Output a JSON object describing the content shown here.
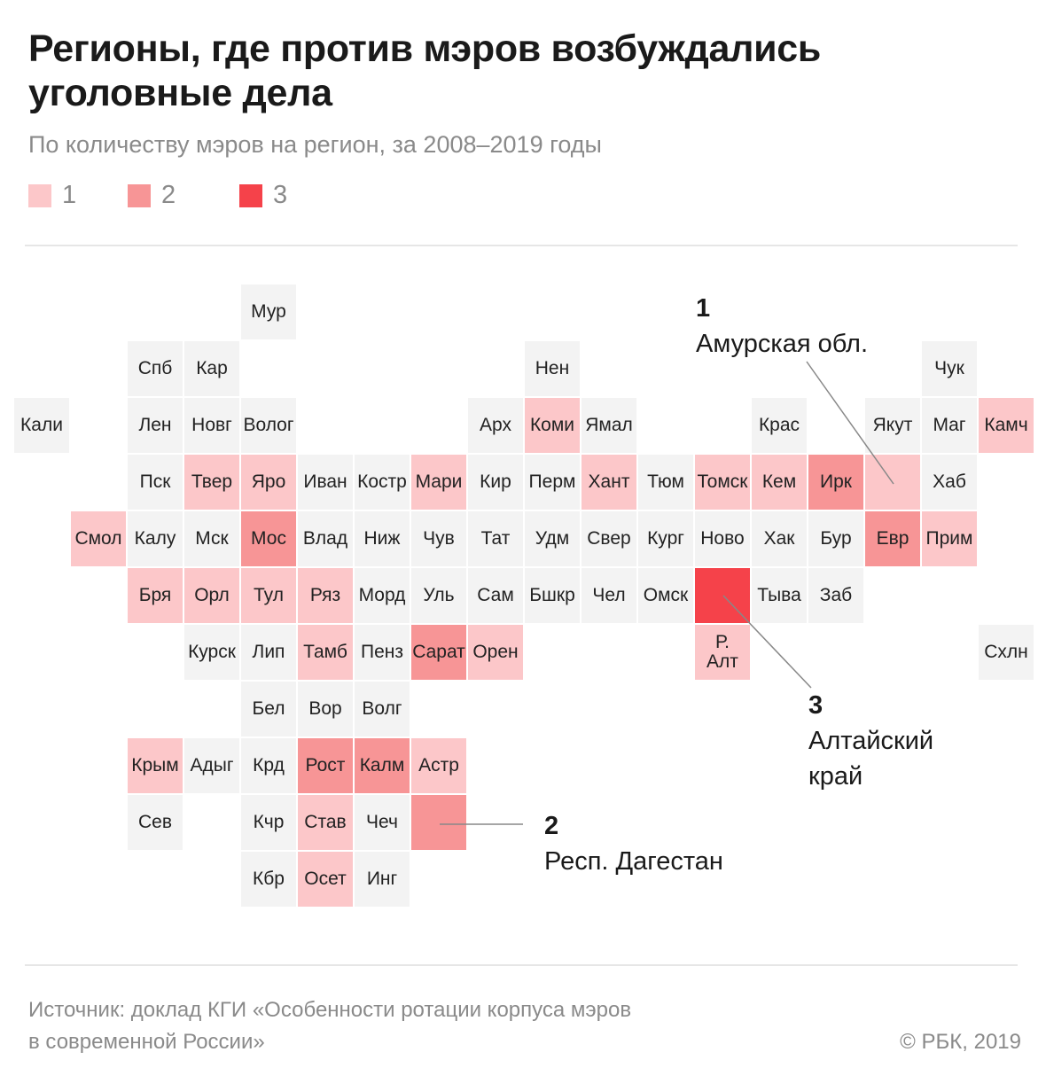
{
  "title": "Регионы, где против мэров возбуждались уголовные дела",
  "subtitle": "По количеству мэров на регион, за 2008–2019 годы",
  "colors": {
    "0": "#f3f3f3",
    "1": "#fcc7c9",
    "2": "#f79596",
    "3": "#f5424a"
  },
  "legend": [
    {
      "label": "1",
      "value": 1
    },
    {
      "label": "2",
      "value": 2
    },
    {
      "label": "3",
      "value": 3
    }
  ],
  "tiles": [
    {
      "label": "Мур",
      "col": 4,
      "row": 0,
      "value": 0
    },
    {
      "label": "Спб",
      "col": 2,
      "row": 1,
      "value": 0
    },
    {
      "label": "Кар",
      "col": 3,
      "row": 1,
      "value": 0
    },
    {
      "label": "Нен",
      "col": 9,
      "row": 1,
      "value": 0
    },
    {
      "label": "Чук",
      "col": 16,
      "row": 1,
      "value": 0
    },
    {
      "label": "Кали",
      "col": 0,
      "row": 2,
      "value": 0
    },
    {
      "label": "Лен",
      "col": 2,
      "row": 2,
      "value": 0
    },
    {
      "label": "Новг",
      "col": 3,
      "row": 2,
      "value": 0
    },
    {
      "label": "Волог",
      "col": 4,
      "row": 2,
      "value": 0
    },
    {
      "label": "Арх",
      "col": 8,
      "row": 2,
      "value": 0
    },
    {
      "label": "Коми",
      "col": 9,
      "row": 2,
      "value": 1
    },
    {
      "label": "Ямал",
      "col": 10,
      "row": 2,
      "value": 0
    },
    {
      "label": "Крас",
      "col": 13,
      "row": 2,
      "value": 0
    },
    {
      "label": "Якут",
      "col": 15,
      "row": 2,
      "value": 0
    },
    {
      "label": "Маг",
      "col": 16,
      "row": 2,
      "value": 0
    },
    {
      "label": "Камч",
      "col": 17,
      "row": 2,
      "value": 1
    },
    {
      "label": "Пск",
      "col": 2,
      "row": 3,
      "value": 0
    },
    {
      "label": "Твер",
      "col": 3,
      "row": 3,
      "value": 1
    },
    {
      "label": "Яро",
      "col": 4,
      "row": 3,
      "value": 1
    },
    {
      "label": "Иван",
      "col": 5,
      "row": 3,
      "value": 0
    },
    {
      "label": "Костр",
      "col": 6,
      "row": 3,
      "value": 0
    },
    {
      "label": "Мари",
      "col": 7,
      "row": 3,
      "value": 1
    },
    {
      "label": "Кир",
      "col": 8,
      "row": 3,
      "value": 0
    },
    {
      "label": "Перм",
      "col": 9,
      "row": 3,
      "value": 0
    },
    {
      "label": "Хант",
      "col": 10,
      "row": 3,
      "value": 1
    },
    {
      "label": "Тюм",
      "col": 11,
      "row": 3,
      "value": 0
    },
    {
      "label": "Томск",
      "col": 12,
      "row": 3,
      "value": 1
    },
    {
      "label": "Кем",
      "col": 13,
      "row": 3,
      "value": 1
    },
    {
      "label": "Ирк",
      "col": 14,
      "row": 3,
      "value": 2
    },
    {
      "label": "",
      "col": 15,
      "row": 3,
      "value": 1,
      "callout": "Амурская обл."
    },
    {
      "label": "Хаб",
      "col": 16,
      "row": 3,
      "value": 0
    },
    {
      "label": "Смол",
      "col": 1,
      "row": 4,
      "value": 1
    },
    {
      "label": "Калу",
      "col": 2,
      "row": 4,
      "value": 0
    },
    {
      "label": "Мск",
      "col": 3,
      "row": 4,
      "value": 0
    },
    {
      "label": "Мос",
      "col": 4,
      "row": 4,
      "value": 2
    },
    {
      "label": "Влад",
      "col": 5,
      "row": 4,
      "value": 0
    },
    {
      "label": "Ниж",
      "col": 6,
      "row": 4,
      "value": 0
    },
    {
      "label": "Чув",
      "col": 7,
      "row": 4,
      "value": 0
    },
    {
      "label": "Тат",
      "col": 8,
      "row": 4,
      "value": 0
    },
    {
      "label": "Удм",
      "col": 9,
      "row": 4,
      "value": 0
    },
    {
      "label": "Свер",
      "col": 10,
      "row": 4,
      "value": 0
    },
    {
      "label": "Кург",
      "col": 11,
      "row": 4,
      "value": 0
    },
    {
      "label": "Ново",
      "col": 12,
      "row": 4,
      "value": 0
    },
    {
      "label": "Хак",
      "col": 13,
      "row": 4,
      "value": 0
    },
    {
      "label": "Бур",
      "col": 14,
      "row": 4,
      "value": 0
    },
    {
      "label": "Евр",
      "col": 15,
      "row": 4,
      "value": 2
    },
    {
      "label": "Прим",
      "col": 16,
      "row": 4,
      "value": 1
    },
    {
      "label": "Бря",
      "col": 2,
      "row": 5,
      "value": 1
    },
    {
      "label": "Орл",
      "col": 3,
      "row": 5,
      "value": 1
    },
    {
      "label": "Тул",
      "col": 4,
      "row": 5,
      "value": 1
    },
    {
      "label": "Ряз",
      "col": 5,
      "row": 5,
      "value": 1
    },
    {
      "label": "Морд",
      "col": 6,
      "row": 5,
      "value": 0
    },
    {
      "label": "Уль",
      "col": 7,
      "row": 5,
      "value": 0
    },
    {
      "label": "Сам",
      "col": 8,
      "row": 5,
      "value": 0
    },
    {
      "label": "Бшкр",
      "col": 9,
      "row": 5,
      "value": 0
    },
    {
      "label": "Чел",
      "col": 10,
      "row": 5,
      "value": 0
    },
    {
      "label": "Омск",
      "col": 11,
      "row": 5,
      "value": 0
    },
    {
      "label": "",
      "col": 12,
      "row": 5,
      "value": 3,
      "callout": "Алтайский край"
    },
    {
      "label": "Тыва",
      "col": 13,
      "row": 5,
      "value": 0
    },
    {
      "label": "Заб",
      "col": 14,
      "row": 5,
      "value": 0
    },
    {
      "label": "Курск",
      "col": 3,
      "row": 6,
      "value": 0
    },
    {
      "label": "Лип",
      "col": 4,
      "row": 6,
      "value": 0
    },
    {
      "label": "Тамб",
      "col": 5,
      "row": 6,
      "value": 1
    },
    {
      "label": "Пенз",
      "col": 6,
      "row": 6,
      "value": 0
    },
    {
      "label": "Сарат",
      "col": 7,
      "row": 6,
      "value": 2
    },
    {
      "label": "Орен",
      "col": 8,
      "row": 6,
      "value": 1
    },
    {
      "label": "Р.\nАлт",
      "col": 12,
      "row": 6,
      "value": 1
    },
    {
      "label": "Схлн",
      "col": 17,
      "row": 6,
      "value": 0
    },
    {
      "label": "Бел",
      "col": 4,
      "row": 7,
      "value": 0
    },
    {
      "label": "Вор",
      "col": 5,
      "row": 7,
      "value": 0
    },
    {
      "label": "Волг",
      "col": 6,
      "row": 7,
      "value": 0
    },
    {
      "label": "Крым",
      "col": 2,
      "row": 8,
      "value": 1
    },
    {
      "label": "Адыг",
      "col": 3,
      "row": 8,
      "value": 0
    },
    {
      "label": "Крд",
      "col": 4,
      "row": 8,
      "value": 0
    },
    {
      "label": "Рост",
      "col": 5,
      "row": 8,
      "value": 2
    },
    {
      "label": "Калм",
      "col": 6,
      "row": 8,
      "value": 2
    },
    {
      "label": "Астр",
      "col": 7,
      "row": 8,
      "value": 1
    },
    {
      "label": "Сев",
      "col": 2,
      "row": 9,
      "value": 0
    },
    {
      "label": "Кчр",
      "col": 4,
      "row": 9,
      "value": 0
    },
    {
      "label": "Став",
      "col": 5,
      "row": 9,
      "value": 1
    },
    {
      "label": "Чеч",
      "col": 6,
      "row": 9,
      "value": 0
    },
    {
      "label": "",
      "col": 7,
      "row": 9,
      "value": 2,
      "callout": "Респ. Дагестан"
    },
    {
      "label": "Кбр",
      "col": 4,
      "row": 10,
      "value": 0
    },
    {
      "label": "Осет",
      "col": 5,
      "row": 10,
      "value": 1
    },
    {
      "label": "Инг",
      "col": 6,
      "row": 10,
      "value": 0
    }
  ],
  "annotations": [
    {
      "num": "1",
      "text": "Амурская обл."
    },
    {
      "num": "2",
      "text": "Респ. Дагестан"
    },
    {
      "num": "3",
      "text_line1": "Алтайский",
      "text_line2": "край"
    }
  ],
  "source_line1": "Источник: доклад КГИ «Особенности ротации корпуса мэров",
  "source_line2": "в современной России»",
  "copyright": "© РБК, 2019"
}
